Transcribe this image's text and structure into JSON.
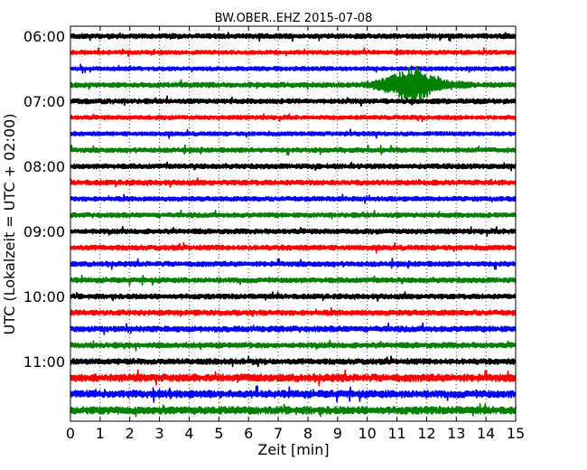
{
  "chart_data": {
    "type": "line",
    "title": "BW.OBER..EHZ 2015-07-08",
    "xlabel": "Zeit  [min]",
    "ylabel": "UTC (Lokalzeit = UTC + 02:00)",
    "xlim": [
      0,
      15
    ],
    "x_ticks": [
      "0",
      "1",
      "2",
      "3",
      "4",
      "5",
      "6",
      "7",
      "8",
      "9",
      "10",
      "11",
      "12",
      "13",
      "14",
      "15"
    ],
    "y_tick_labels": [
      "06:00",
      "07:00",
      "08:00",
      "09:00",
      "10:00",
      "11:00"
    ],
    "y_tick_trace_index": [
      0,
      4,
      8,
      12,
      16,
      20
    ],
    "grid": "vertical dotted",
    "trace_interval_minutes": 15,
    "first_trace_start": "06:00",
    "trace_count": 24,
    "color_cycle": [
      "#000000",
      "#ff0000",
      "#0000ff",
      "#008000"
    ],
    "traces": [
      {
        "start": "06:00",
        "amp": 0.3
      },
      {
        "start": "06:15",
        "amp": 0.25
      },
      {
        "start": "06:30",
        "amp": 0.25
      },
      {
        "start": "06:45",
        "amp": 0.3
      },
      {
        "start": "07:00",
        "amp": 0.3
      },
      {
        "start": "07:15",
        "amp": 0.25
      },
      {
        "start": "07:30",
        "amp": 0.25
      },
      {
        "start": "07:45",
        "amp": 0.28
      },
      {
        "start": "08:00",
        "amp": 0.3
      },
      {
        "start": "08:15",
        "amp": 0.3
      },
      {
        "start": "08:30",
        "amp": 0.28
      },
      {
        "start": "08:45",
        "amp": 0.28
      },
      {
        "start": "09:00",
        "amp": 0.3
      },
      {
        "start": "09:15",
        "amp": 0.3
      },
      {
        "start": "09:30",
        "amp": 0.3
      },
      {
        "start": "09:45",
        "amp": 0.3
      },
      {
        "start": "10:00",
        "amp": 0.3
      },
      {
        "start": "10:15",
        "amp": 0.32
      },
      {
        "start": "10:30",
        "amp": 0.34
      },
      {
        "start": "10:45",
        "amp": 0.32
      },
      {
        "start": "11:00",
        "amp": 0.34
      },
      {
        "start": "11:15",
        "amp": 0.45
      },
      {
        "start": "11:30",
        "amp": 0.45
      },
      {
        "start": "11:45",
        "amp": 0.45
      }
    ],
    "event": {
      "trace_start": "06:45",
      "from_min": 9.7,
      "peak_min": 11.6,
      "to_min": 13.5,
      "peak_amp": 3.5
    }
  }
}
